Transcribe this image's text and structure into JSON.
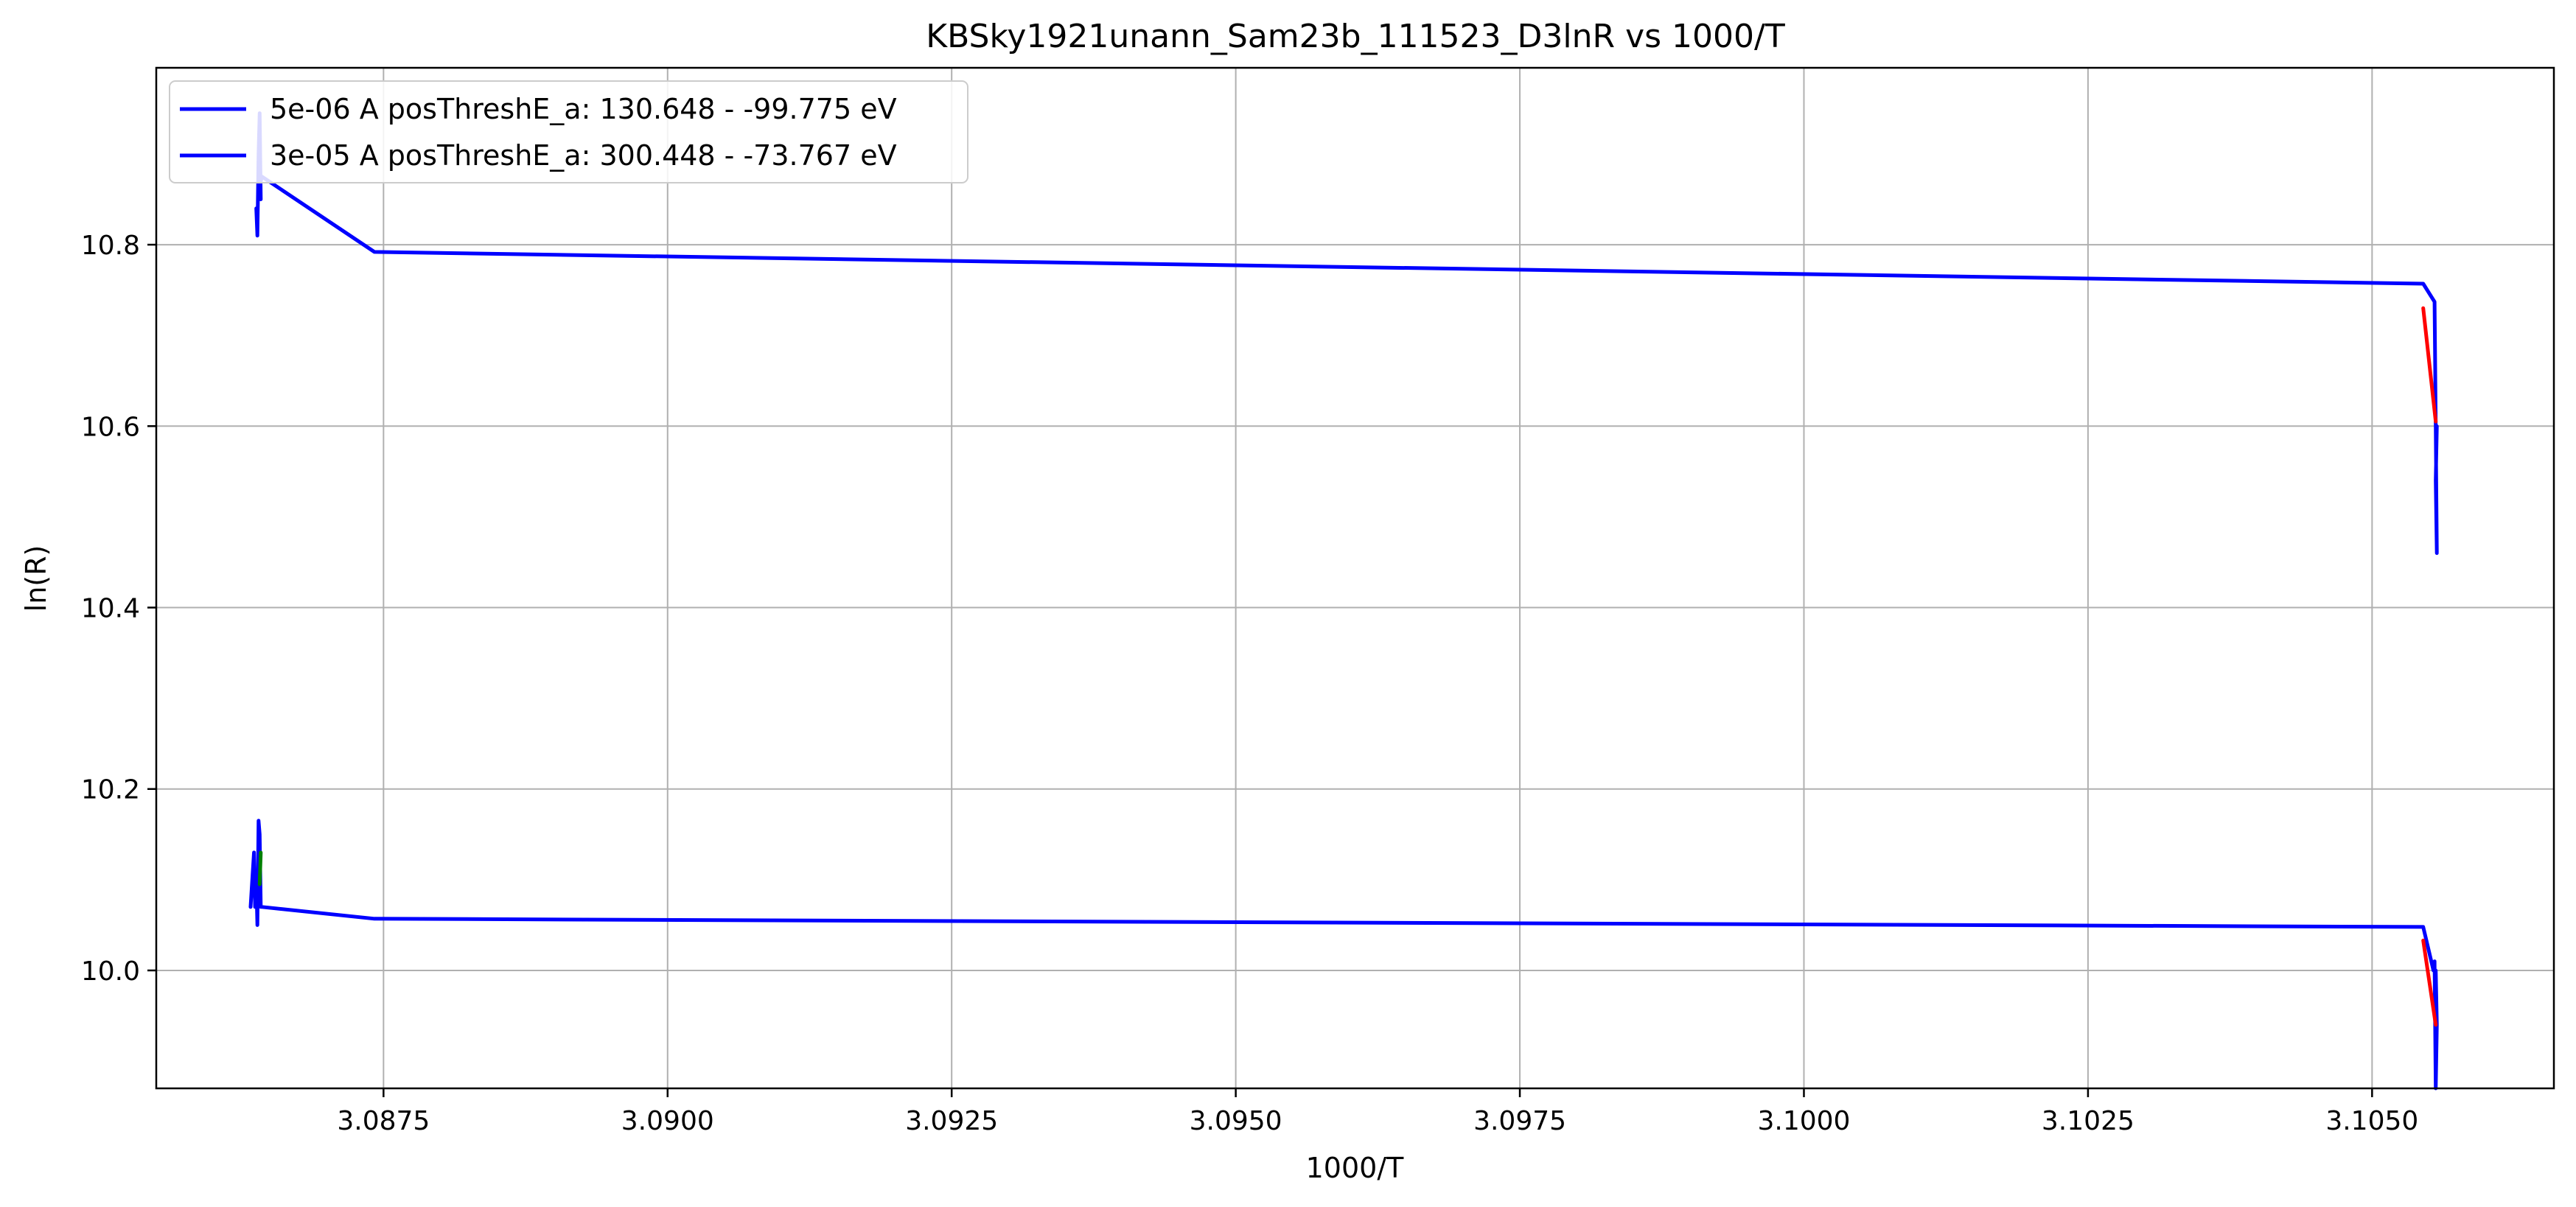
{
  "chart_data": {
    "type": "line",
    "title": "KBSky1921unann_Sam23b_111523_D3lnR vs 1000/T",
    "xlabel": "1000/T",
    "ylabel": "ln(R)",
    "xlim": [
      3.0855,
      3.1066
    ],
    "ylim": [
      9.87,
      10.995
    ],
    "xticks": [
      3.0875,
      3.09,
      3.0925,
      3.095,
      3.0975,
      3.1,
      3.1025,
      3.105
    ],
    "xtick_labels": [
      "3.0875",
      "3.0900",
      "3.0925",
      "3.0950",
      "3.0975",
      "3.1000",
      "3.1025",
      "3.1050"
    ],
    "yticks": [
      10.0,
      10.2,
      10.4,
      10.6,
      10.8
    ],
    "ytick_labels": [
      "10.0",
      "10.2",
      "10.4",
      "10.6",
      "10.8"
    ],
    "grid": true,
    "legend_position": "top-left",
    "series": [
      {
        "name": "5e-06 A posThreshE_a: 130.648 - -99.775 eV",
        "color": "#0000ff",
        "x": [
          3.08638,
          3.08639,
          3.0864,
          3.08641,
          3.08642,
          3.08641,
          3.08642,
          3.08643,
          3.08742,
          3.10545,
          3.10555,
          3.10556,
          3.10557,
          3.10556,
          3.10557
        ],
        "y": [
          10.84,
          10.81,
          10.9,
          10.945,
          10.85,
          10.88,
          10.87,
          10.875,
          10.792,
          10.757,
          10.737,
          10.6,
          10.46,
          10.54,
          10.6
        ]
      },
      {
        "name": "3e-05 A posThreshE_a: 300.448 - -73.767 eV",
        "color": "#0000ff",
        "x": [
          3.08633,
          3.08634,
          3.08636,
          3.08637,
          3.08638,
          3.08639,
          3.0864,
          3.08641,
          3.08642,
          3.08643,
          3.08742,
          3.10545,
          3.10554,
          3.10555,
          3.10556,
          3.10557,
          3.10556
        ],
        "y": [
          10.07,
          10.09,
          10.13,
          10.07,
          10.1,
          10.05,
          10.165,
          10.15,
          10.07,
          10.07,
          10.057,
          10.048,
          10.0,
          10.01,
          9.87,
          9.94,
          10.0
        ]
      }
    ],
    "fit_lines": [
      {
        "color": "#ff0000",
        "x": [
          3.10545,
          3.10556
        ],
        "y": [
          10.73,
          10.605
        ]
      },
      {
        "color": "#ff0000",
        "x": [
          3.10545,
          3.10556
        ],
        "y": [
          10.033,
          9.94
        ]
      },
      {
        "color": "#008000",
        "x": [
          3.08641,
          3.08642
        ],
        "y": [
          10.095,
          10.13
        ]
      }
    ]
  }
}
